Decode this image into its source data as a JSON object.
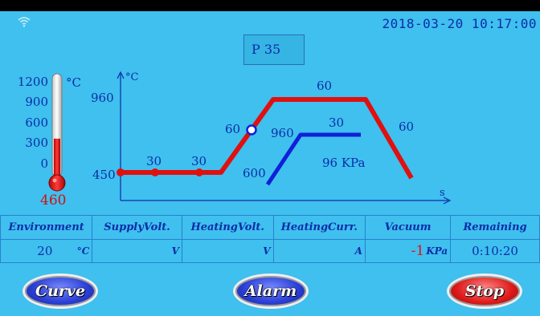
{
  "header": {
    "datetime": "2018-03-20  10:17:00",
    "wifi_icon": "wifi-icon",
    "program": "P 35"
  },
  "thermometer": {
    "scale": [
      "1200",
      "900",
      "600",
      "300",
      "0"
    ],
    "unit": "°C",
    "value": "460",
    "level_fraction": 0.38
  },
  "chart_data": {
    "type": "line",
    "y_unit": "°C",
    "x_unit": "s",
    "y_ticks": [
      "960",
      "450"
    ],
    "temperature_profile": {
      "color": "#e01010",
      "segment_labels": [
        "30",
        "30",
        "60",
        "60",
        "60"
      ],
      "marker_values": [
        450,
        450,
        450
      ],
      "current_point": "60"
    },
    "vacuum_profile": {
      "color": "#1020d8",
      "labels": [
        "600",
        "960",
        "30"
      ],
      "readout": "96 KPa"
    }
  },
  "table": {
    "headers": [
      "Environment",
      "SupplyVolt.",
      "HeatingVolt.",
      "HeatingCurr.",
      "Vacuum",
      "Remaining"
    ],
    "values": [
      {
        "value": "20",
        "unit": "°C"
      },
      {
        "value": "",
        "unit": "V"
      },
      {
        "value": "",
        "unit": "V"
      },
      {
        "value": "",
        "unit": "A"
      },
      {
        "value": "-1",
        "unit": "KPa"
      },
      {
        "value": "0:10:20",
        "unit": ""
      }
    ]
  },
  "buttons": {
    "curve": "Curve",
    "alarm": "Alarm",
    "stop": "Stop"
  },
  "colors": {
    "background": "#3fc0ee",
    "text": "#0d2ca8",
    "temperature_line": "#e01010",
    "vacuum_line": "#1020d8"
  }
}
